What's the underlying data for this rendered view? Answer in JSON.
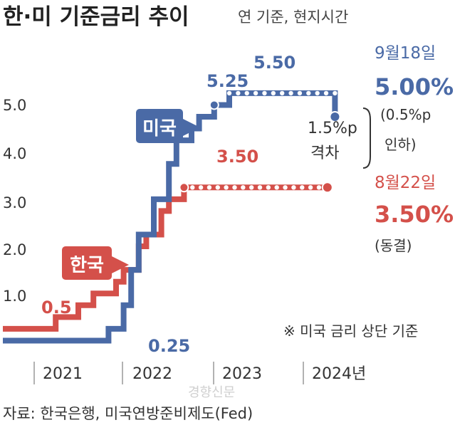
{
  "header": {
    "title": "한·미 기준금리 추이",
    "subtitle": "연 기준, 현지시간"
  },
  "footer": {
    "source": "자료: 한국은행, 미국연방준비제도(Fed)",
    "watermark": "경향신문"
  },
  "colors": {
    "us": "#4a6aa6",
    "kr": "#d4504a",
    "grid": "#bbbbbb",
    "text": "#333333"
  },
  "chart_data": {
    "type": "line",
    "step": true,
    "x_axis": {
      "tick_labels": [
        "2021",
        "2022",
        "2023",
        "2024년"
      ],
      "range": [
        "2021-01",
        "2024-12"
      ]
    },
    "y_axis": {
      "tick_labels": [
        "1.0",
        "2.0",
        "3.0",
        "4.0",
        "5.0"
      ],
      "range": [
        0,
        5.5
      ]
    },
    "series": [
      {
        "name": "미국",
        "key": "us",
        "points": [
          [
            "2021-01",
            0.25
          ],
          [
            "2022-03",
            0.5
          ],
          [
            "2022-05",
            1.0
          ],
          [
            "2022-06",
            1.75
          ],
          [
            "2022-07",
            2.5
          ],
          [
            "2022-09",
            3.25
          ],
          [
            "2022-11",
            4.0
          ],
          [
            "2022-12",
            4.5
          ],
          [
            "2023-02",
            4.75
          ],
          [
            "2023-03",
            5.0
          ],
          [
            "2023-05",
            5.25
          ],
          [
            "2023-07",
            5.5
          ],
          [
            "2024-09",
            5.5
          ],
          [
            "2024-09",
            5.0
          ]
        ],
        "dots": {
          "from": "2023-07",
          "to": "2024-09",
          "value": 5.5
        }
      },
      {
        "name": "한국",
        "key": "kr",
        "points": [
          [
            "2021-01",
            0.5
          ],
          [
            "2021-08",
            0.75
          ],
          [
            "2021-11",
            1.0
          ],
          [
            "2022-01",
            1.25
          ],
          [
            "2022-04",
            1.5
          ],
          [
            "2022-05",
            1.75
          ],
          [
            "2022-07",
            2.25
          ],
          [
            "2022-08",
            2.5
          ],
          [
            "2022-10",
            3.0
          ],
          [
            "2022-11",
            3.25
          ],
          [
            "2023-01",
            3.5
          ],
          [
            "2024-08",
            3.5
          ]
        ],
        "dots": {
          "from": "2023-01",
          "to": "2024-08",
          "value": 3.5
        }
      }
    ],
    "annotations": {
      "us_low": "0.25",
      "kr_low": "0.5",
      "us_525": "5.25",
      "us_550": "5.50",
      "kr_350": "3.50",
      "gap_line1": "1.5%p",
      "gap_line2": "격차",
      "us_date": "9월18일",
      "us_rate": "5.00%",
      "us_note1": "(0.5%p",
      "us_note2": "인하)",
      "kr_date": "8월22일",
      "kr_rate": "3.50%",
      "kr_note": "(동결)",
      "basis_note": "※ 미국 금리 상단 기준"
    }
  }
}
